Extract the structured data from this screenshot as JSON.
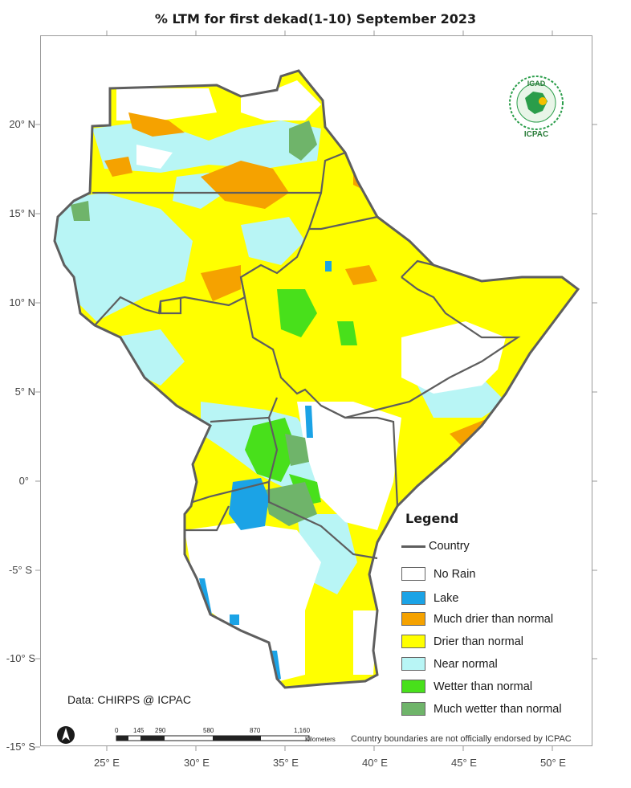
{
  "title": "% LTM  for  first dekad(1-10)  September  2023",
  "lat_labels": [
    "20° N",
    "15° N",
    "10° N",
    "5° N",
    "0°",
    "-5° S",
    "-10° S",
    "-15° S"
  ],
  "lon_labels": [
    "25° E",
    "30° E",
    "35° E",
    "40° E",
    "45° E",
    "50° E"
  ],
  "legend": {
    "title": "Legend",
    "country_label": "Country",
    "items": [
      {
        "label": "No Rain",
        "color": "#ffffff"
      },
      {
        "label": "Lake",
        "color": "#1ba3e6"
      },
      {
        "label": "Much drier than normal",
        "color": "#f5a200"
      },
      {
        "label": "Drier than normal",
        "color": "#ffff00"
      },
      {
        "label": "Near normal",
        "color": "#b8f5f5"
      },
      {
        "label": "Wetter than normal",
        "color": "#48e01b"
      },
      {
        "label": "Much wetter than normal",
        "color": "#6fb46a"
      }
    ]
  },
  "source": "Data: CHIRPS @ ICPAC",
  "disclaimer": "Country boundaries are not officially endorsed by ICPAC",
  "scale": {
    "ticks": [
      "0",
      "145",
      "290",
      "580",
      "870",
      "1,160"
    ],
    "unit": "Kilometers"
  },
  "logo": {
    "top_text": "IGAD",
    "bottom_text": "ICPAC"
  },
  "north_arrow": "north-arrow-icon"
}
